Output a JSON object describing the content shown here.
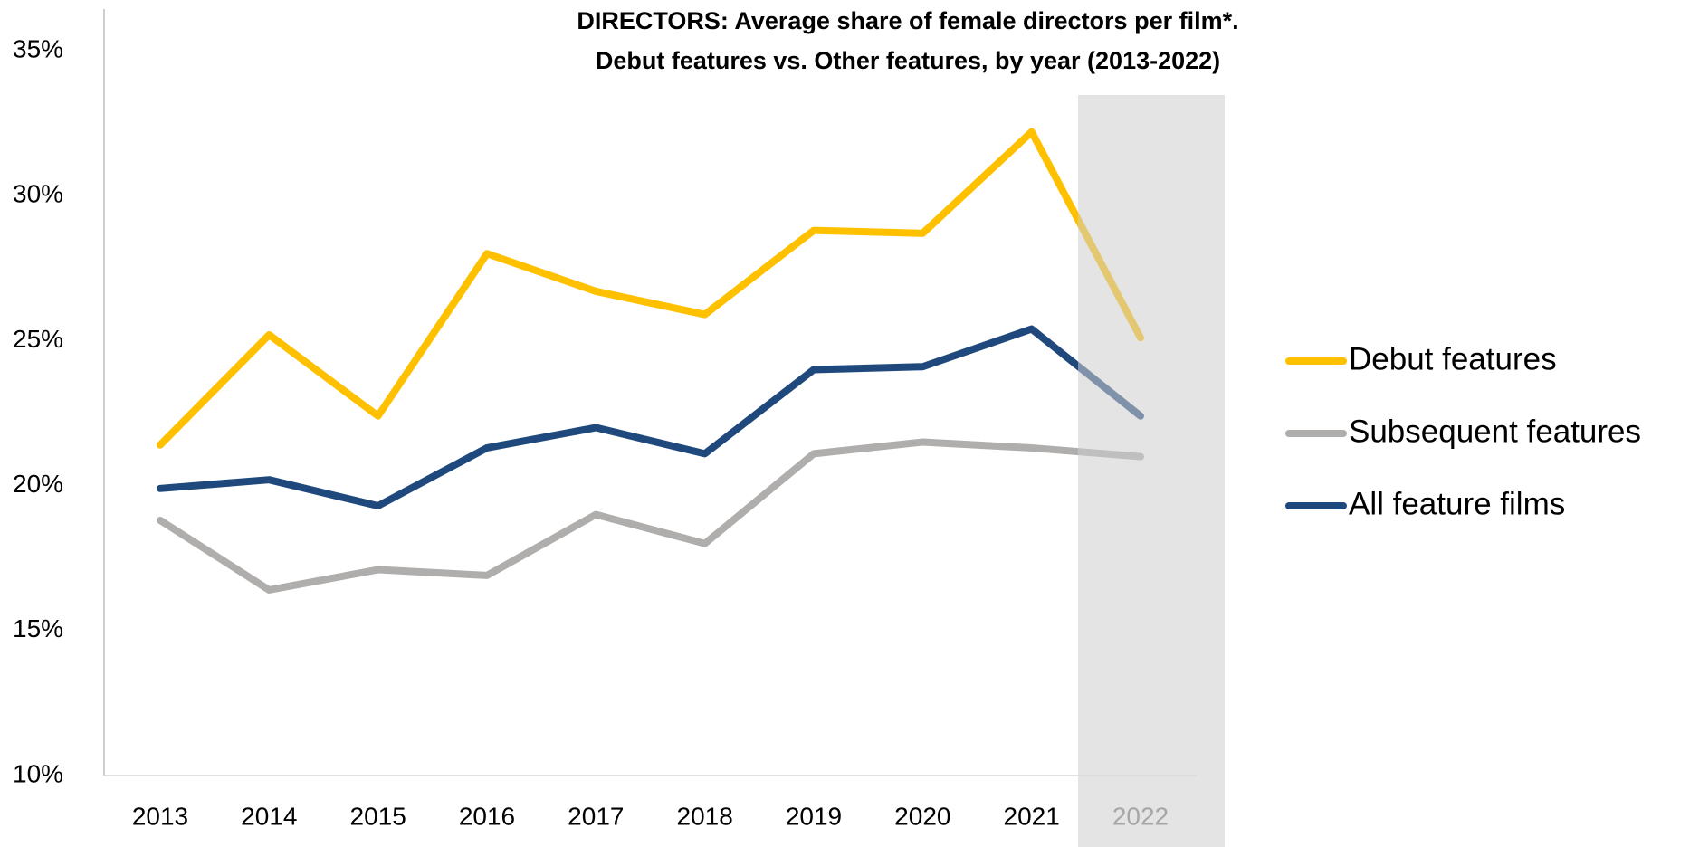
{
  "chart_data": {
    "type": "line",
    "title": "DIRECTORS: Average share of female directors per film*.",
    "subtitle": "Debut features vs. Other features, by year (2013-2022)",
    "categories": [
      "2013",
      "2014",
      "2015",
      "2016",
      "2017",
      "2018",
      "2019",
      "2020",
      "2021",
      "2022"
    ],
    "series": [
      {
        "name": "Debut features",
        "color": "#ffc000",
        "values": [
          21.4,
          25.2,
          22.4,
          28.0,
          26.7,
          25.9,
          28.8,
          28.7,
          32.2,
          25.1
        ]
      },
      {
        "name": "Subsequent features",
        "color": "#b0adad",
        "values": [
          18.8,
          16.4,
          17.1,
          16.9,
          19.0,
          18.0,
          21.1,
          21.5,
          21.3,
          21.0
        ]
      },
      {
        "name": "All feature films",
        "color": "#1f497d",
        "values": [
          19.9,
          20.2,
          19.3,
          21.3,
          22.0,
          21.1,
          24.0,
          24.1,
          25.4,
          22.4
        ]
      }
    ],
    "ylim": [
      10,
      35
    ],
    "yticks": [
      {
        "value": 10,
        "label": "10%"
      },
      {
        "value": 15,
        "label": "15%"
      },
      {
        "value": 20,
        "label": "20%"
      },
      {
        "value": 25,
        "label": "25%"
      },
      {
        "value": 30,
        "label": "30%"
      },
      {
        "value": 35,
        "label": "35%"
      }
    ],
    "grid": false,
    "legend": "right"
  }
}
